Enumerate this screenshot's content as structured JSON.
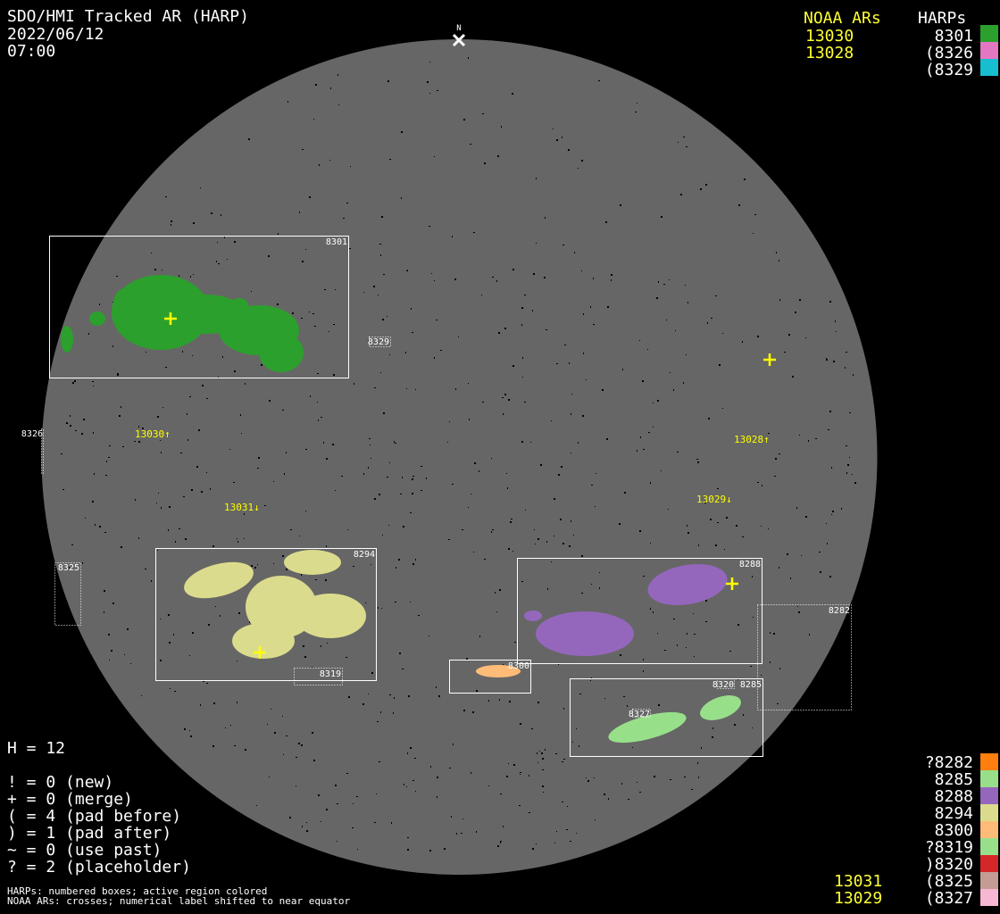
{
  "header": {
    "title": "SDO/HMI Tracked AR (HARP)",
    "date": "2022/06/12",
    "time": "07:00",
    "north_label": "N"
  },
  "legend_top": {
    "noaa_heading": "NOAA ARs",
    "harp_heading": "HARPs",
    "noaa": [
      "13030",
      "13028"
    ],
    "harps": [
      {
        "label": "8301",
        "color": "#2ca02c"
      },
      {
        "label": "(8326",
        "color": "#e377c2"
      },
      {
        "label": "(8329",
        "color": "#17becf"
      }
    ]
  },
  "legend_bottom": {
    "noaa": [
      "13031",
      "13029"
    ],
    "harps": [
      {
        "label": "?8282",
        "color": "#ff7f0e"
      },
      {
        "label": "8285",
        "color": "#98df8a"
      },
      {
        "label": "8288",
        "color": "#9467bd"
      },
      {
        "label": "8294",
        "color": "#dbdb8d"
      },
      {
        "label": "8300",
        "color": "#ffbb78"
      },
      {
        "label": "?8319",
        "color": "#98df8a"
      },
      {
        "label": ")8320",
        "color": "#d62728"
      },
      {
        "label": "(8325",
        "color": "#c49c94"
      },
      {
        "label": "(8327",
        "color": "#f7b6d2"
      }
    ]
  },
  "stats": {
    "h": "H = 12",
    "lines": [
      "! = 0 (new)",
      "+ = 0 (merge)",
      "( = 4 (pad before)",
      ") = 1 (pad after)",
      "~ = 0 (use past)",
      "? = 2 (placeholder)"
    ]
  },
  "footnotes": [
    "HARPs: numbered boxes; active region colored",
    "NOAA ARs: crosses; numerical label shifted to near equator"
  ],
  "map": {
    "disk_color": "#666666",
    "box_labels": {
      "b8301": "8301",
      "b8329": "8329",
      "b8326": "8326",
      "b8325": "8325",
      "b8294": "8294",
      "b8319": "8319",
      "b8300": "8300",
      "b8288": "8288",
      "b8282": "8282",
      "b8285": "8285",
      "b8320": "8320",
      "b8327": "8327"
    },
    "noaa_labels": {
      "n13030": "13030↑",
      "n13028": "13028↑",
      "n13031": "13031↓",
      "n13029": "13029↓"
    }
  }
}
